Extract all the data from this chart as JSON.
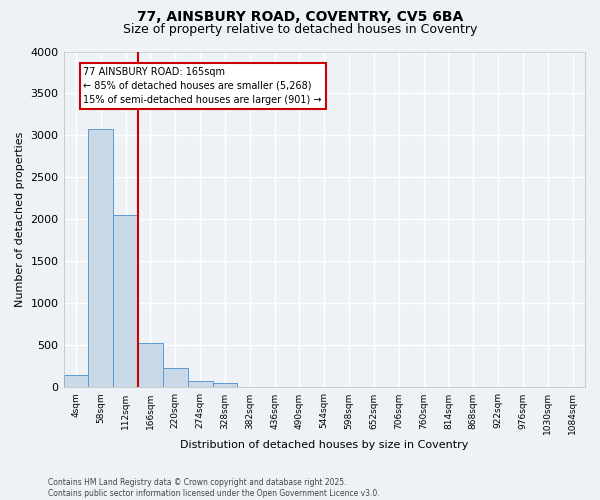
{
  "title1": "77, AINSBURY ROAD, COVENTRY, CV5 6BA",
  "title2": "Size of property relative to detached houses in Coventry",
  "xlabel": "Distribution of detached houses by size in Coventry",
  "ylabel": "Number of detached properties",
  "bin_labels": [
    "4sqm",
    "58sqm",
    "112sqm",
    "166sqm",
    "220sqm",
    "274sqm",
    "328sqm",
    "382sqm",
    "436sqm",
    "490sqm",
    "544sqm",
    "598sqm",
    "652sqm",
    "706sqm",
    "760sqm",
    "814sqm",
    "868sqm",
    "922sqm",
    "976sqm",
    "1030sqm",
    "1084sqm"
  ],
  "bar_values": [
    150,
    3080,
    2050,
    530,
    230,
    80,
    50,
    0,
    0,
    0,
    0,
    0,
    0,
    0,
    0,
    0,
    0,
    0,
    0,
    0,
    0
  ],
  "bar_color": "#c9d9e8",
  "bar_edge_color": "#5b9bd5",
  "vline_x_index": 3,
  "vline_color": "#cc0000",
  "annotation_text": "77 AINSBURY ROAD: 165sqm\n← 85% of detached houses are smaller (5,268)\n15% of semi-detached houses are larger (901) →",
  "annotation_box_color": "#cc0000",
  "ylim": [
    0,
    4000
  ],
  "yticks": [
    0,
    500,
    1000,
    1500,
    2000,
    2500,
    3000,
    3500,
    4000
  ],
  "footer": "Contains HM Land Registry data © Crown copyright and database right 2025.\nContains public sector information licensed under the Open Government Licence v3.0.",
  "bg_color": "#eef2f7",
  "grid_color": "#ffffff",
  "title_fontsize": 10,
  "subtitle_fontsize": 9
}
